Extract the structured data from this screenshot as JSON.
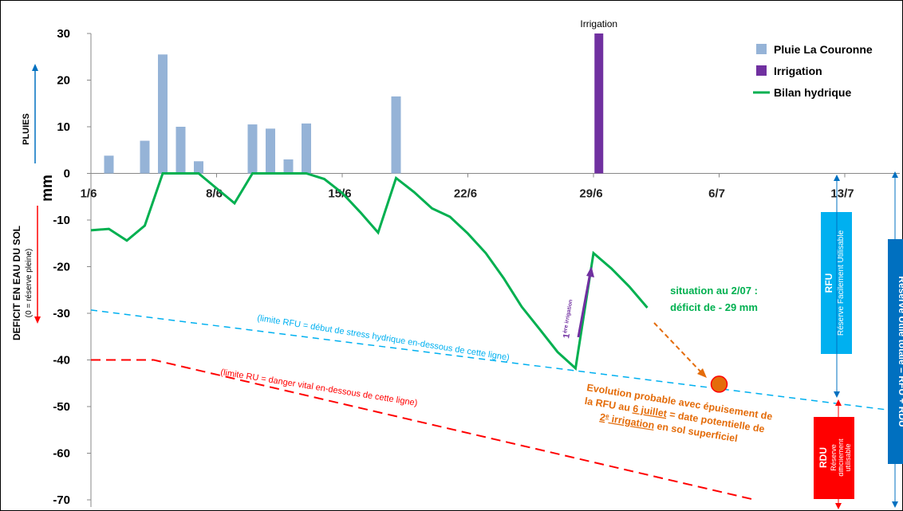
{
  "chart_data": {
    "type": "bar",
    "x_axis": {
      "tick_labels": [
        "1/6",
        "8/6",
        "15/6",
        "22/6",
        "29/6",
        "6/7",
        "13/7"
      ],
      "tick_days": [
        1,
        8,
        15,
        22,
        29,
        36,
        43
      ],
      "range_days": [
        1,
        46
      ]
    },
    "y_axis": {
      "ylim": [
        -70,
        30
      ],
      "ticks": [
        30,
        20,
        10,
        0,
        -10,
        -20,
        -30,
        -40,
        -50,
        -60,
        -70
      ],
      "unit_label": "mm",
      "upper_label": "PLUIES",
      "lower_label": "DEFICIT EN EAU DU SOL",
      "lower_sublabel": "(0 = réserve pleine)"
    },
    "legend": {
      "placement": "top-right",
      "items": [
        {
          "label": "Pluie La Couronne",
          "color": "#95B3D7",
          "kind": "bar"
        },
        {
          "label": "Irrigation",
          "color": "#7030A0",
          "kind": "bar"
        },
        {
          "label": "Bilan hydrique",
          "color": "#00B050",
          "kind": "line"
        }
      ]
    },
    "series": [
      {
        "name": "Pluie La Couronne",
        "kind": "bar",
        "color": "#95B3D7",
        "points": [
          {
            "day": 2,
            "value": 3.8
          },
          {
            "day": 4,
            "value": 7
          },
          {
            "day": 5,
            "value": 25.5
          },
          {
            "day": 6,
            "value": 10
          },
          {
            "day": 7,
            "value": 2.6
          },
          {
            "day": 10,
            "value": 10.5
          },
          {
            "day": 11,
            "value": 9.6
          },
          {
            "day": 12,
            "value": 3
          },
          {
            "day": 13,
            "value": 10.7
          },
          {
            "day": 18,
            "value": 16.5
          }
        ]
      },
      {
        "name": "Irrigation",
        "kind": "bar",
        "color": "#7030A0",
        "points": [
          {
            "day": 29.3,
            "value": 30
          }
        ],
        "top_label": "Irrigation"
      },
      {
        "name": "Bilan hydrique",
        "kind": "line",
        "color": "#00B050",
        "points": [
          {
            "day": 1,
            "value": -12.2
          },
          {
            "day": 2,
            "value": -11.9
          },
          {
            "day": 3,
            "value": -14.4
          },
          {
            "day": 4,
            "value": -11.2
          },
          {
            "day": 5,
            "value": 0
          },
          {
            "day": 6,
            "value": 0
          },
          {
            "day": 7,
            "value": 0
          },
          {
            "day": 8,
            "value": -3.2
          },
          {
            "day": 9,
            "value": -6.4
          },
          {
            "day": 10,
            "value": 0
          },
          {
            "day": 11,
            "value": 0
          },
          {
            "day": 12,
            "value": 0
          },
          {
            "day": 13,
            "value": 0
          },
          {
            "day": 14,
            "value": -1.2
          },
          {
            "day": 15,
            "value": -4.2
          },
          {
            "day": 16,
            "value": -8.3
          },
          {
            "day": 17,
            "value": -12.7
          },
          {
            "day": 18,
            "value": -1
          },
          {
            "day": 19,
            "value": -4
          },
          {
            "day": 20,
            "value": -7.5
          },
          {
            "day": 21,
            "value": -9.3
          },
          {
            "day": 22,
            "value": -12.9
          },
          {
            "day": 23,
            "value": -17.1
          },
          {
            "day": 24,
            "value": -22.5
          },
          {
            "day": 25,
            "value": -28.6
          },
          {
            "day": 26,
            "value": -33.4
          },
          {
            "day": 27,
            "value": -38.3
          },
          {
            "day": 28,
            "value": -41.8
          },
          {
            "day": 29,
            "value": -17.1
          },
          {
            "day": 30,
            "value": -20.4
          },
          {
            "day": 31,
            "value": -24.3
          },
          {
            "day": 32,
            "value": -28.8
          }
        ]
      }
    ],
    "reference_lines": [
      {
        "name": "limite RFU",
        "color": "#00B0F0",
        "style": "dashed",
        "points": [
          {
            "day": 1,
            "value": -29.3
          },
          {
            "day": 46,
            "value": -51
          }
        ],
        "label": "(limite RFU = début de stress hydrique en-dessous de cette ligne)"
      },
      {
        "name": "limite RU",
        "color": "#FF0000",
        "style": "dashed",
        "points": [
          {
            "day": 1,
            "value": -40
          },
          {
            "day": 4.5,
            "value": -40
          },
          {
            "day": 38,
            "value": -70
          }
        ],
        "label": "(limite RU = danger vital en-dessous de cette ligne)"
      }
    ],
    "annotations": {
      "first_irrigation": "ère irrigation",
      "first_irrigation_prefix": "1",
      "situation_line1": "situation au 2/07 :",
      "situation_line2": "déficit de - 29 mm",
      "forecast_point": {
        "day": 36,
        "value": -45.2
      },
      "forecast_lines": [
        [
          {
            "text": "Evolution probable avec épuisement de",
            "u": false
          }
        ],
        [
          {
            "text": "la RFU au ",
            "u": false
          },
          {
            "text": "6 juillet",
            "u": true
          },
          {
            "text": " = date potentielle de",
            "u": false
          }
        ],
        [
          {
            "text": "2",
            "u": true
          },
          {
            "text": "e",
            "u": true,
            "sup": true
          },
          {
            "text": " irrigation",
            "u": true
          },
          {
            "text": " en sol superficiel",
            "u": false
          }
        ]
      ],
      "rfu_box_title": "RFU",
      "rfu_box_sub": "Réserve Facilement Utilisable",
      "rdu_box_title": "RDU",
      "rdu_box_sub1": "Réserve",
      "rdu_box_sub2": "difficilement",
      "rdu_box_sub3": "utilisable",
      "total_box": "Réserve Utile totale = RFU + RDU"
    },
    "colors": {
      "rain": "#95B3D7",
      "irrigation": "#7030A0",
      "bilan": "#00B050",
      "rfu_line": "#00B0F0",
      "ru_line": "#FF0000",
      "forecast": "#E46C0A",
      "arrow_blue": "#0070C0",
      "arrow_red": "#FF0000",
      "rdu_box": "#FF0000",
      "total_box": "#0070C0"
    }
  }
}
